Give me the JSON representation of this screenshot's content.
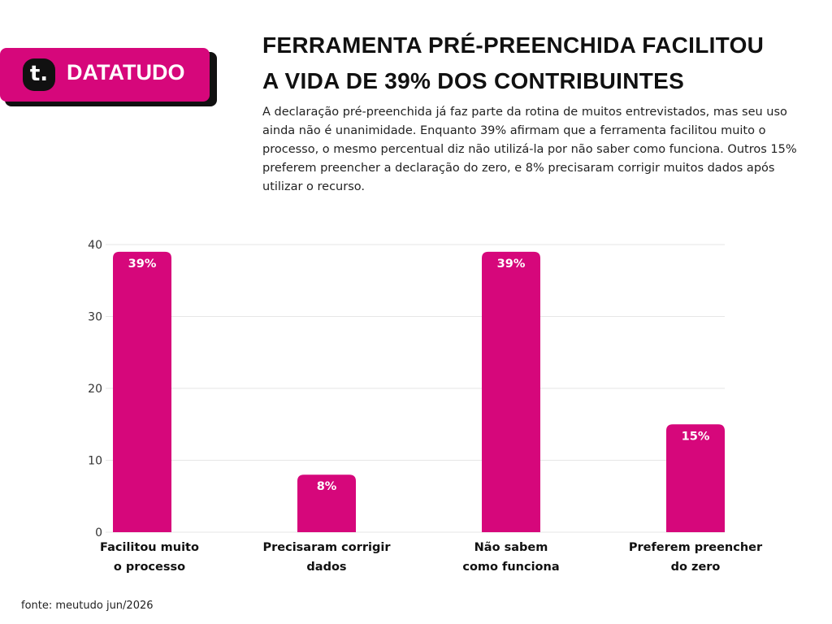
{
  "brand": {
    "icon": "t.",
    "name": "DATATUDO"
  },
  "source": "fonte: meutudo jun/2026",
  "chart_data": {
    "type": "bar",
    "title": "FERRAMENTA PRÉ-PREENCHIDA FACILITOU\nA VIDA DE 39% DOS CONTRIBUINTES",
    "subtitle": "A declaração pré-preenchida já faz parte da rotina de muitos entrevistados, mas seu uso ainda não é unanimidade. Enquanto 39% afirmam que a ferramenta facilitou muito o processo, o mesmo percentual diz não utilizá-la por não saber como funciona. Outros 15% preferem preencher a declaração do zero, e 8% precisaram corrigir muitos dados após utilizar o recurso.",
    "categories": [
      "Facilitou muito\no processo",
      "Precisaram corrigir\ndados",
      "Não sabem\ncomo funciona",
      "Preferem preencher\ndo zero"
    ],
    "values": [
      39,
      8,
      39,
      15
    ],
    "value_labels": [
      "39%",
      "8%",
      "39%",
      "15%"
    ],
    "color": "#d6077b",
    "ylim": [
      0,
      40
    ],
    "yticks": [
      0,
      10,
      20,
      30,
      40
    ],
    "grid": true
  }
}
